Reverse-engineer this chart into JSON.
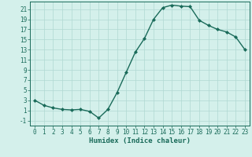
{
  "x": [
    0,
    1,
    2,
    3,
    4,
    5,
    6,
    7,
    8,
    9,
    10,
    11,
    12,
    13,
    14,
    15,
    16,
    17,
    18,
    19,
    20,
    21,
    22,
    23
  ],
  "y": [
    3,
    2,
    1.5,
    1.2,
    1.1,
    1.2,
    0.8,
    -0.5,
    1.2,
    4.5,
    8.5,
    12.5,
    15.2,
    19.0,
    21.3,
    21.8,
    21.6,
    21.5,
    18.8,
    17.8,
    17.0,
    16.5,
    15.5,
    13.0
  ],
  "line_color": "#1a6b5a",
  "marker": "D",
  "marker_size": 2,
  "bg_color": "#d4f0eb",
  "grid_color": "#b0d8d2",
  "xlabel": "Humidex (Indice chaleur)",
  "xlim": [
    -0.5,
    23.5
  ],
  "ylim": [
    -2.0,
    22.5
  ],
  "yticks": [
    -1,
    1,
    3,
    5,
    7,
    9,
    11,
    13,
    15,
    17,
    19,
    21
  ],
  "xticks": [
    0,
    1,
    2,
    3,
    4,
    5,
    6,
    7,
    8,
    9,
    10,
    11,
    12,
    13,
    14,
    15,
    16,
    17,
    18,
    19,
    20,
    21,
    22,
    23
  ],
  "tick_fontsize": 5.5,
  "label_fontsize": 6.5,
  "linewidth": 1.0
}
